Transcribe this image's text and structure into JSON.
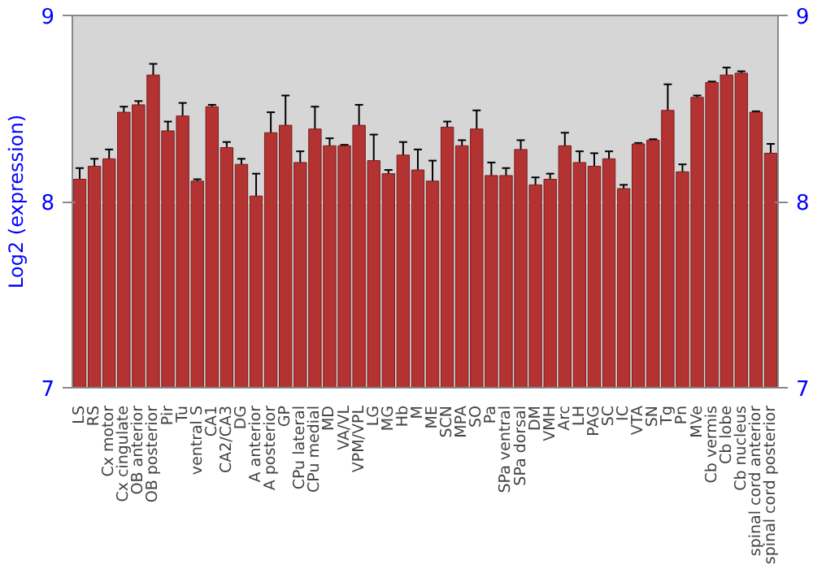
{
  "chart_data": {
    "type": "bar",
    "ylabel": "Log2 (expression)",
    "categories": [
      "LS",
      "RS",
      "Cx motor",
      "Cx cingulate",
      "OB anterior",
      "OB posterior",
      "Pir",
      "Tu",
      "ventral S",
      "CA1",
      "CA2/CA3",
      "DG",
      "A anterior",
      "A posterior",
      "GP",
      "CPu lateral",
      "CPu medial",
      "MD",
      "VA/VL",
      "VPM/VPL",
      "LG",
      "MG",
      "Hb",
      "M",
      "ME",
      "SCN",
      "MPA",
      "SO",
      "Pa",
      "SPa ventral",
      "SPa dorsal",
      "DM",
      "VMH",
      "Arc",
      "LH",
      "PAG",
      "SC",
      "IC",
      "VTA",
      "SN",
      "Tg",
      "Pn",
      "MVe",
      "Cb vermis",
      "Cb lobe",
      "Cb nucleus",
      "spinal cord anterior",
      "spinal cord posterior"
    ],
    "values": [
      8.12,
      8.19,
      8.23,
      8.48,
      8.52,
      8.68,
      8.38,
      8.46,
      8.11,
      8.51,
      8.29,
      8.2,
      8.03,
      8.37,
      8.41,
      8.21,
      8.39,
      8.3,
      8.3,
      8.41,
      8.22,
      8.15,
      8.25,
      8.17,
      8.11,
      8.4,
      8.3,
      8.39,
      8.14,
      8.14,
      8.28,
      8.09,
      8.12,
      8.3,
      8.21,
      8.19,
      8.23,
      8.07,
      8.31,
      8.33,
      8.49,
      8.16,
      8.56,
      8.64,
      8.68,
      8.69,
      8.48,
      8.26
    ],
    "errors": [
      0.06,
      0.04,
      0.05,
      0.03,
      0.02,
      0.06,
      0.05,
      0.07,
      0.01,
      0.01,
      0.03,
      0.03,
      0.12,
      0.11,
      0.16,
      0.06,
      0.12,
      0.04,
      0.005,
      0.11,
      0.14,
      0.02,
      0.07,
      0.11,
      0.11,
      0.03,
      0.03,
      0.1,
      0.07,
      0.04,
      0.05,
      0.04,
      0.03,
      0.07,
      0.06,
      0.07,
      0.04,
      0.02,
      0.005,
      0.005,
      0.14,
      0.04,
      0.01,
      0.005,
      0.04,
      0.01,
      0.005,
      0.05
    ],
    "color": "#b33232",
    "ylim": [
      7,
      9
    ],
    "yticks": [
      7,
      8,
      9
    ],
    "y2lim": [
      7,
      9
    ],
    "y2ticks": [
      7,
      8,
      9
    ],
    "grid": "y"
  }
}
